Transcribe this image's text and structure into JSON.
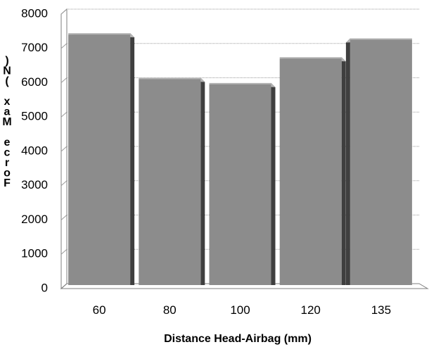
{
  "chart_data": {
    "type": "bar",
    "categories": [
      "60",
      "80",
      "100",
      "120",
      "135"
    ],
    "series": [
      {
        "values": [
          7300,
          6000,
          5850,
          6600,
          7150
        ]
      }
    ],
    "xlabel": "Distance Head-Airbag (mm)",
    "ylabel": "Force Max (N)",
    "ylabel_display_chars": [
      "F",
      "o",
      "r",
      "c",
      "e",
      " ",
      "M",
      "a",
      "x",
      " ",
      "(",
      "N",
      ")"
    ],
    "y_ticks": [
      "0",
      "1000",
      "2000",
      "3000",
      "4000",
      "5000",
      "6000",
      "7000",
      "8000"
    ],
    "ylim": [
      0,
      8000
    ],
    "grid": true,
    "legend": "none",
    "style": "3d-columns",
    "colors": {
      "bar_front": "#8c8c8c",
      "bar_side": "#3f3f3f",
      "bar_top": "#b4b4b4",
      "grid": "#9a9a9a",
      "axis": "#7f7f7f",
      "text": "#000000"
    }
  }
}
